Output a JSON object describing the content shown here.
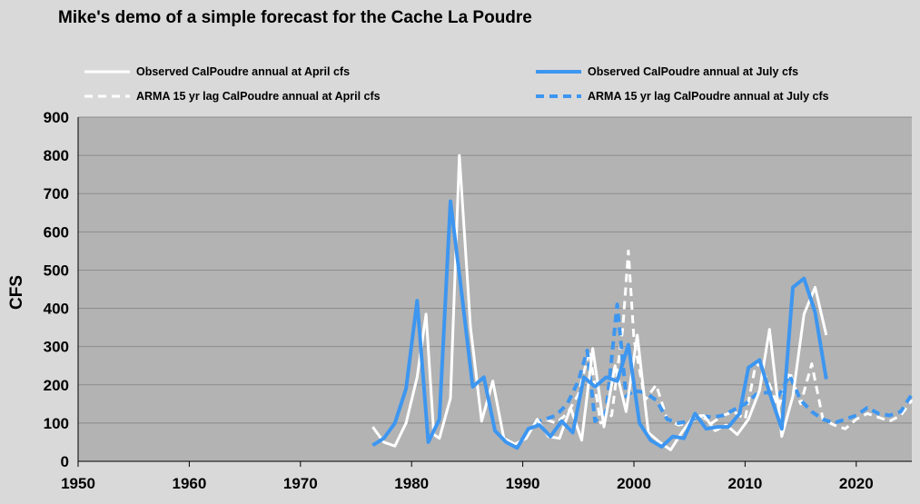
{
  "chart_data": {
    "type": "line",
    "title": "Mike's demo of a simple forecast for the Cache La Poudre",
    "ylabel": "CFS",
    "xlabel": "",
    "xlim": [
      1950,
      2025
    ],
    "ylim": [
      0,
      900
    ],
    "x_ticks": [
      1950,
      1960,
      1970,
      1980,
      1990,
      2000,
      2010,
      2020
    ],
    "y_ticks": [
      0,
      100,
      200,
      300,
      400,
      500,
      600,
      700,
      800,
      900
    ],
    "grid": "horizontal",
    "plot_background": "#b3b3b3",
    "legend_position": "top",
    "series": [
      {
        "name": "Observed CalPoudre annual at April cfs",
        "color": "#ffffff",
        "dash": "solid",
        "points": [
          [
            1976.5,
            90
          ],
          [
            1977.5,
            50
          ],
          [
            1978.5,
            40
          ],
          [
            1979.5,
            100
          ],
          [
            1980.5,
            220
          ],
          [
            1981.3,
            385
          ],
          [
            1982,
            70
          ],
          [
            1982.5,
            60
          ],
          [
            1983.5,
            165
          ],
          [
            1984.3,
            800
          ],
          [
            1985.3,
            350
          ],
          [
            1986.3,
            105
          ],
          [
            1987.3,
            210
          ],
          [
            1988.3,
            60
          ],
          [
            1989.3,
            45
          ],
          [
            1990.3,
            60
          ],
          [
            1991.3,
            110
          ],
          [
            1992.3,
            65
          ],
          [
            1993.3,
            60
          ],
          [
            1994.3,
            140
          ],
          [
            1995.3,
            55
          ],
          [
            1996.3,
            295
          ],
          [
            1997.3,
            90
          ],
          [
            1998.3,
            250
          ],
          [
            1999.3,
            130
          ],
          [
            2000.3,
            330
          ],
          [
            2001.3,
            75
          ],
          [
            2002.3,
            50
          ],
          [
            2003.3,
            30
          ],
          [
            2004.3,
            75
          ],
          [
            2005.3,
            115
          ],
          [
            2006.3,
            120
          ],
          [
            2007.3,
            80
          ],
          [
            2008.3,
            95
          ],
          [
            2009.3,
            70
          ],
          [
            2010.3,
            110
          ],
          [
            2011.3,
            185
          ],
          [
            2012.2,
            345
          ],
          [
            2013.3,
            65
          ],
          [
            2014.3,
            170
          ],
          [
            2015.3,
            385
          ],
          [
            2016.3,
            455
          ],
          [
            2017.3,
            330
          ]
        ]
      },
      {
        "name": "Observed CalPoudre annual at July cfs",
        "color": "#3d96f0",
        "dash": "solid",
        "points": [
          [
            1976.5,
            42
          ],
          [
            1977.5,
            60
          ],
          [
            1978.5,
            100
          ],
          [
            1979.5,
            190
          ],
          [
            1980.5,
            420
          ],
          [
            1981.5,
            50
          ],
          [
            1982.5,
            110
          ],
          [
            1983.5,
            680
          ],
          [
            1984.5,
            440
          ],
          [
            1985.5,
            195
          ],
          [
            1986.5,
            220
          ],
          [
            1987.5,
            80
          ],
          [
            1988.5,
            50
          ],
          [
            1989.5,
            35
          ],
          [
            1990.5,
            85
          ],
          [
            1991.5,
            95
          ],
          [
            1992.5,
            65
          ],
          [
            1993.5,
            105
          ],
          [
            1994.5,
            75
          ],
          [
            1995.5,
            220
          ],
          [
            1996.5,
            195
          ],
          [
            1997.5,
            220
          ],
          [
            1998.5,
            210
          ],
          [
            1999.5,
            305
          ],
          [
            2000.5,
            100
          ],
          [
            2001.5,
            55
          ],
          [
            2002.5,
            38
          ],
          [
            2003.5,
            65
          ],
          [
            2004.5,
            60
          ],
          [
            2005.5,
            125
          ],
          [
            2006.5,
            85
          ],
          [
            2007.5,
            90
          ],
          [
            2008.5,
            90
          ],
          [
            2009.5,
            125
          ],
          [
            2010.3,
            245
          ],
          [
            2011.3,
            265
          ],
          [
            2012.3,
            170
          ],
          [
            2013.3,
            85
          ],
          [
            2014.3,
            455
          ],
          [
            2015.3,
            478
          ],
          [
            2016.3,
            390
          ],
          [
            2017.3,
            215
          ]
        ]
      },
      {
        "name": "ARMA 15 yr lag CalPoudre annual at April cfs",
        "color": "#ffffff",
        "dash": "dashed",
        "points": [
          [
            1991,
            100
          ],
          [
            1992,
            110
          ],
          [
            1993,
            100
          ],
          [
            1994,
            125
          ],
          [
            1995,
            175
          ],
          [
            1996,
            290
          ],
          [
            1997,
            100
          ],
          [
            1998,
            120
          ],
          [
            1999,
            350
          ],
          [
            1999.5,
            550
          ],
          [
            2000,
            320
          ],
          [
            2001,
            160
          ],
          [
            2002,
            200
          ],
          [
            2003,
            110
          ],
          [
            2004,
            95
          ],
          [
            2005,
            100
          ],
          [
            2006,
            120
          ],
          [
            2007,
            100
          ],
          [
            2008,
            120
          ],
          [
            2009,
            130
          ],
          [
            2010,
            110
          ],
          [
            2011,
            260
          ],
          [
            2012,
            215
          ],
          [
            2013,
            140
          ],
          [
            2014,
            235
          ],
          [
            2015,
            150
          ],
          [
            2016,
            255
          ],
          [
            2017,
            110
          ],
          [
            2018,
            95
          ],
          [
            2019,
            85
          ],
          [
            2020,
            110
          ],
          [
            2021,
            125
          ],
          [
            2022,
            115
          ],
          [
            2023,
            105
          ],
          [
            2024,
            120
          ],
          [
            2025,
            160
          ]
        ]
      },
      {
        "name": "ARMA 15 yr lag CalPoudre annual at July cfs",
        "color": "#3d96f0",
        "dash": "dashed",
        "points": [
          [
            1991,
            100
          ],
          [
            1992,
            110
          ],
          [
            1993,
            120
          ],
          [
            1994,
            150
          ],
          [
            1995,
            210
          ],
          [
            1995.8,
            290
          ],
          [
            1996.5,
            105
          ],
          [
            1997.5,
            130
          ],
          [
            1998.5,
            410
          ],
          [
            1999.3,
            170
          ],
          [
            2000,
            185
          ],
          [
            2001,
            180
          ],
          [
            2002,
            160
          ],
          [
            2003,
            110
          ],
          [
            2004,
            100
          ],
          [
            2005,
            105
          ],
          [
            2006,
            120
          ],
          [
            2007,
            115
          ],
          [
            2008,
            120
          ],
          [
            2009,
            135
          ],
          [
            2010,
            150
          ],
          [
            2011,
            175
          ],
          [
            2012,
            180
          ],
          [
            2013,
            170
          ],
          [
            2014,
            225
          ],
          [
            2015,
            160
          ],
          [
            2016,
            130
          ],
          [
            2017,
            110
          ],
          [
            2018,
            100
          ],
          [
            2019,
            110
          ],
          [
            2020,
            120
          ],
          [
            2021,
            140
          ],
          [
            2022,
            125
          ],
          [
            2023,
            120
          ],
          [
            2024,
            130
          ],
          [
            2025,
            175
          ]
        ]
      }
    ]
  }
}
